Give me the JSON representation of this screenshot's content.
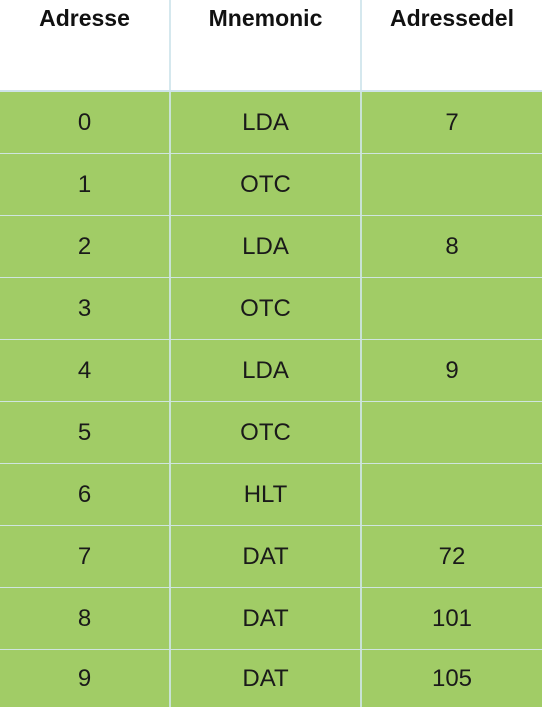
{
  "table": {
    "headers": [
      "Adresse",
      "Mnemonic",
      "Adressedel"
    ],
    "rows": [
      [
        "0",
        "LDA",
        "7"
      ],
      [
        "1",
        "OTC",
        ""
      ],
      [
        "2",
        "LDA",
        "8"
      ],
      [
        "3",
        "OTC",
        ""
      ],
      [
        "4",
        "LDA",
        "9"
      ],
      [
        "5",
        "OTC",
        ""
      ],
      [
        "6",
        "HLT",
        ""
      ],
      [
        "7",
        "DAT",
        "72"
      ],
      [
        "8",
        "DAT",
        "101"
      ],
      [
        "9",
        "DAT",
        "105"
      ]
    ],
    "row_color": "#a1cc66",
    "header_color": "#ffffff"
  }
}
